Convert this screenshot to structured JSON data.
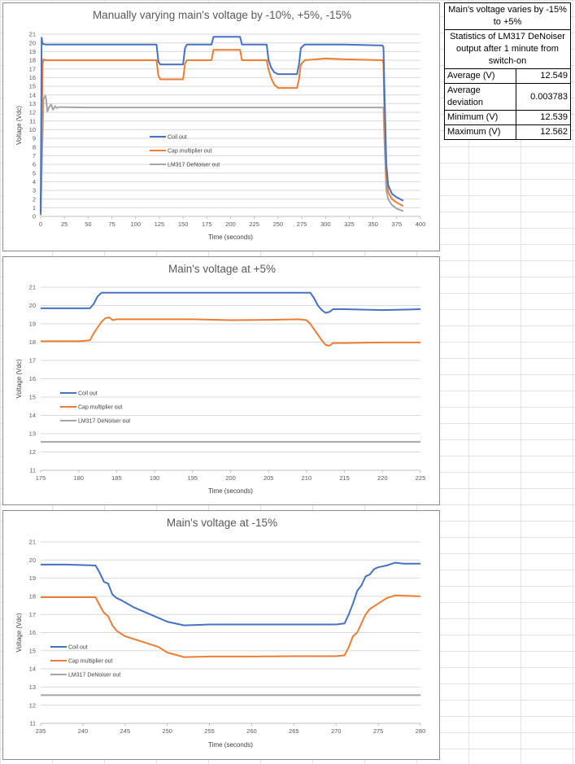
{
  "stats_table": {
    "header_1": "Main's voltage varies by -15% to +5%",
    "header_2": "Statistics of LM317 DeNoiser output after 1 minute from switch-on",
    "rows": [
      {
        "label": "Average  (V)",
        "value": "12.549"
      },
      {
        "label": "Average deviation",
        "value": "0.003783"
      },
      {
        "label": "Minimum (V)",
        "value": "12.539"
      },
      {
        "label": "Maximum (V)",
        "value": "12.562"
      }
    ]
  },
  "colors": {
    "coil": "#4472C4",
    "cap": "#ED7D31",
    "lm317": "#A5A5A5"
  },
  "chart_data": [
    {
      "type": "line",
      "title": "Manually varying main's voltage by -10%, +5%, -15%",
      "xlabel": "Time (seconds)",
      "ylabel": "Voltage (Vdc)",
      "xlim": [
        0,
        400
      ],
      "ylim": [
        0,
        21
      ],
      "xticks": [
        0,
        25,
        50,
        75,
        100,
        125,
        150,
        175,
        200,
        225,
        250,
        275,
        300,
        325,
        350,
        375,
        400
      ],
      "yticks": [
        0,
        1,
        2,
        3,
        4,
        5,
        6,
        7,
        8,
        9,
        10,
        11,
        12,
        13,
        14,
        15,
        16,
        17,
        18,
        19,
        20,
        21
      ],
      "grid": "horizontal",
      "legend_position": "center-left",
      "series": [
        {
          "name": "Coil out",
          "color_key": "coil",
          "points": [
            [
              0,
              0.3
            ],
            [
              1,
              20.6
            ],
            [
              2,
              19.9
            ],
            [
              5,
              19.8
            ],
            [
              50,
              19.8
            ],
            [
              100,
              19.8
            ],
            [
              122,
              19.8
            ],
            [
              124,
              17.8
            ],
            [
              126,
              17.5
            ],
            [
              150,
              17.5
            ],
            [
              152,
              19.4
            ],
            [
              154,
              19.8
            ],
            [
              180,
              19.8
            ],
            [
              182,
              20.7
            ],
            [
              210,
              20.7
            ],
            [
              212,
              19.8
            ],
            [
              238,
              19.8
            ],
            [
              240,
              18.0
            ],
            [
              243,
              17.1
            ],
            [
              246,
              16.6
            ],
            [
              250,
              16.4
            ],
            [
              270,
              16.4
            ],
            [
              272,
              17.5
            ],
            [
              274,
              19.4
            ],
            [
              278,
              19.8
            ],
            [
              300,
              19.8
            ],
            [
              320,
              19.8
            ],
            [
              360,
              19.7
            ],
            [
              361,
              19.5
            ],
            [
              362,
              15.0
            ],
            [
              364,
              6.0
            ],
            [
              366,
              3.6
            ],
            [
              370,
              2.6
            ],
            [
              375,
              2.2
            ],
            [
              382,
              1.8
            ]
          ]
        },
        {
          "name": "Cap multiplier out",
          "color_key": "cap",
          "points": [
            [
              0,
              0.2
            ],
            [
              2,
              17.5
            ],
            [
              3,
              18.1
            ],
            [
              5,
              18.0
            ],
            [
              50,
              18.0
            ],
            [
              122,
              18.0
            ],
            [
              124,
              16.2
            ],
            [
              126,
              15.8
            ],
            [
              150,
              15.8
            ],
            [
              152,
              17.6
            ],
            [
              154,
              18.0
            ],
            [
              180,
              18.0
            ],
            [
              182,
              19.2
            ],
            [
              210,
              19.2
            ],
            [
              212,
              18.0
            ],
            [
              238,
              18.0
            ],
            [
              240,
              16.9
            ],
            [
              243,
              15.9
            ],
            [
              246,
              15.2
            ],
            [
              250,
              14.8
            ],
            [
              270,
              14.8
            ],
            [
              272,
              15.8
            ],
            [
              274,
              17.5
            ],
            [
              278,
              18.0
            ],
            [
              300,
              18.2
            ],
            [
              320,
              18.1
            ],
            [
              360,
              18.0
            ],
            [
              361,
              17.7
            ],
            [
              362,
              12.0
            ],
            [
              364,
              4.6
            ],
            [
              366,
              2.8
            ],
            [
              370,
              2.0
            ],
            [
              375,
              1.6
            ],
            [
              382,
              1.2
            ]
          ]
        },
        {
          "name": "LM317 DeNoiser out",
          "color_key": "lm317",
          "points": [
            [
              0,
              0.1
            ],
            [
              3,
              13.6
            ],
            [
              5,
              13.9
            ],
            [
              6,
              13.3
            ],
            [
              7,
              12.1
            ],
            [
              9,
              12.6
            ],
            [
              11,
              12.9
            ],
            [
              13,
              12.3
            ],
            [
              15,
              12.7
            ],
            [
              17,
              12.5
            ],
            [
              20,
              12.6
            ],
            [
              50,
              12.55
            ],
            [
              150,
              12.55
            ],
            [
              250,
              12.55
            ],
            [
              360,
              12.55
            ],
            [
              361,
              12.5
            ],
            [
              362,
              9.0
            ],
            [
              364,
              3.0
            ],
            [
              366,
              2.0
            ],
            [
              370,
              1.3
            ],
            [
              375,
              0.9
            ],
            [
              382,
              0.6
            ]
          ]
        }
      ]
    },
    {
      "type": "line",
      "title": "Main's voltage at +5%",
      "xlabel": "Time (seconds)",
      "ylabel": "Voltage (Vdc)",
      "xlim": [
        175,
        225
      ],
      "ylim": [
        11,
        21
      ],
      "xticks": [
        175,
        180,
        185,
        190,
        195,
        200,
        205,
        210,
        215,
        220,
        225
      ],
      "yticks": [
        11,
        12,
        13,
        14,
        15,
        16,
        17,
        18,
        19,
        20,
        21
      ],
      "grid": "horizontal",
      "legend_position": "center-left",
      "series": [
        {
          "name": "Coil out",
          "color_key": "coil",
          "points": [
            [
              175,
              19.85
            ],
            [
              180,
              19.85
            ],
            [
              181.5,
              19.85
            ],
            [
              182,
              20.1
            ],
            [
              182.5,
              20.5
            ],
            [
              183,
              20.7
            ],
            [
              190,
              20.7
            ],
            [
              200,
              20.7
            ],
            [
              210,
              20.7
            ],
            [
              210.5,
              20.7
            ],
            [
              211,
              20.4
            ],
            [
              211.5,
              20.0
            ],
            [
              212,
              19.75
            ],
            [
              212.5,
              19.6
            ],
            [
              213,
              19.65
            ],
            [
              213.5,
              19.8
            ],
            [
              215,
              19.8
            ],
            [
              220,
              19.75
            ],
            [
              225,
              19.8
            ]
          ]
        },
        {
          "name": "Cap multiplier out",
          "color_key": "cap",
          "points": [
            [
              175,
              18.05
            ],
            [
              180,
              18.05
            ],
            [
              181.5,
              18.1
            ],
            [
              182,
              18.5
            ],
            [
              182.5,
              18.8
            ],
            [
              183,
              19.1
            ],
            [
              183.5,
              19.3
            ],
            [
              184,
              19.35
            ],
            [
              184.5,
              19.2
            ],
            [
              185,
              19.25
            ],
            [
              190,
              19.25
            ],
            [
              195,
              19.25
            ],
            [
              200,
              19.2
            ],
            [
              205,
              19.22
            ],
            [
              209,
              19.25
            ],
            [
              210,
              19.2
            ],
            [
              210.5,
              19.0
            ],
            [
              211,
              18.7
            ],
            [
              211.5,
              18.4
            ],
            [
              212,
              18.1
            ],
            [
              212.5,
              17.85
            ],
            [
              213,
              17.8
            ],
            [
              213.5,
              17.95
            ],
            [
              215,
              17.95
            ],
            [
              220,
              17.98
            ],
            [
              225,
              17.98
            ]
          ]
        },
        {
          "name": "LM317 DeNoiser out",
          "color_key": "lm317",
          "points": [
            [
              175,
              12.55
            ],
            [
              200,
              12.55
            ],
            [
              225,
              12.55
            ]
          ]
        }
      ]
    },
    {
      "type": "line",
      "title": "Main's voltage at -15%",
      "xlabel": "Time (seconds)",
      "ylabel": "Voltage (Vdc)",
      "xlim": [
        235,
        280
      ],
      "ylim": [
        11,
        21
      ],
      "xticks": [
        235,
        240,
        245,
        250,
        255,
        260,
        265,
        270,
        275,
        280
      ],
      "yticks": [
        11,
        12,
        13,
        14,
        15,
        16,
        17,
        18,
        19,
        20,
        21
      ],
      "grid": "horizontal",
      "legend_position": "bottom-left",
      "series": [
        {
          "name": "Coil out",
          "color_key": "coil",
          "points": [
            [
              235,
              19.75
            ],
            [
              238,
              19.75
            ],
            [
              241.5,
              19.7
            ],
            [
              242,
              19.3
            ],
            [
              242.5,
              18.8
            ],
            [
              243,
              18.7
            ],
            [
              243.5,
              18.1
            ],
            [
              244,
              17.9
            ],
            [
              244.5,
              17.8
            ],
            [
              246,
              17.4
            ],
            [
              248,
              17.0
            ],
            [
              250,
              16.6
            ],
            [
              252,
              16.4
            ],
            [
              255,
              16.45
            ],
            [
              260,
              16.45
            ],
            [
              265,
              16.45
            ],
            [
              270,
              16.45
            ],
            [
              271,
              16.5
            ],
            [
              271.5,
              17.0
            ],
            [
              272,
              17.6
            ],
            [
              272.5,
              18.3
            ],
            [
              273,
              18.6
            ],
            [
              273.5,
              19.1
            ],
            [
              274,
              19.2
            ],
            [
              274.5,
              19.5
            ],
            [
              275,
              19.6
            ],
            [
              276,
              19.7
            ],
            [
              277,
              19.85
            ],
            [
              278,
              19.8
            ],
            [
              280,
              19.8
            ]
          ]
        },
        {
          "name": "Cap multiplier out",
          "color_key": "cap",
          "points": [
            [
              235,
              17.95
            ],
            [
              238,
              17.95
            ],
            [
              241.5,
              17.95
            ],
            [
              242,
              17.5
            ],
            [
              242.5,
              17.1
            ],
            [
              243,
              16.9
            ],
            [
              243.5,
              16.4
            ],
            [
              244,
              16.1
            ],
            [
              245,
              15.8
            ],
            [
              247,
              15.5
            ],
            [
              249,
              15.2
            ],
            [
              250,
              14.9
            ],
            [
              252,
              14.65
            ],
            [
              255,
              14.68
            ],
            [
              260,
              14.68
            ],
            [
              265,
              14.7
            ],
            [
              270,
              14.7
            ],
            [
              271,
              14.75
            ],
            [
              271.5,
              15.2
            ],
            [
              272,
              15.8
            ],
            [
              272.5,
              16.0
            ],
            [
              273,
              16.5
            ],
            [
              273.5,
              17.0
            ],
            [
              274,
              17.3
            ],
            [
              275,
              17.6
            ],
            [
              276,
              17.9
            ],
            [
              277,
              18.05
            ],
            [
              280,
              18.0
            ]
          ]
        },
        {
          "name": "LM317 DeNoiser out",
          "color_key": "lm317",
          "points": [
            [
              235,
              12.55
            ],
            [
              255,
              12.55
            ],
            [
              280,
              12.55
            ]
          ]
        }
      ]
    }
  ]
}
